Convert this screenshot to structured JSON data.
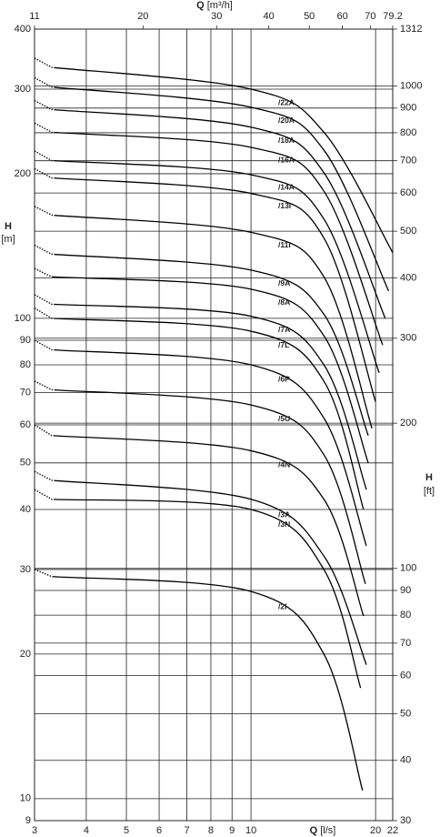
{
  "chart_data": {
    "type": "line",
    "x_label": "Q",
    "x_unit": "[l/s]",
    "x2_label": "Q",
    "x2_unit": "[m³/h]",
    "y_label": "H",
    "y_unit": "[m]",
    "y2_label": "H",
    "y2_unit": "[ft]",
    "xlim": [
      3,
      22
    ],
    "xticks": [
      3,
      4,
      5,
      6,
      7,
      8,
      9,
      10,
      20,
      22
    ],
    "x2lim": [
      11,
      79.2
    ],
    "x2ticks": [
      11,
      20,
      30,
      40,
      50,
      60,
      70,
      79.2
    ],
    "ylim": [
      9,
      400
    ],
    "yticks": [
      9,
      10,
      20,
      30,
      40,
      50,
      60,
      70,
      80,
      90,
      100,
      200,
      300,
      400
    ],
    "y2lim": [
      30,
      1312
    ],
    "y2ticks": [
      30,
      40,
      50,
      60,
      70,
      80,
      90,
      100,
      200,
      300,
      400,
      500,
      600,
      700,
      800,
      900,
      1000,
      1312
    ],
    "log_x": true,
    "log_y": true,
    "grid": true,
    "color": "#000000",
    "dotted_start": true,
    "series": [
      {
        "name": "/22A",
        "x": [
          3,
          3.3,
          10,
          15,
          22
        ],
        "values": [
          348,
          333,
          300,
          244,
          137
        ]
      },
      {
        "name": "/20A",
        "x": [
          3,
          3.3,
          10,
          15,
          21.5
        ],
        "values": [
          317,
          303,
          275,
          224,
          114
        ]
      },
      {
        "name": "/18A",
        "x": [
          3,
          3.3,
          10,
          15,
          21.1
        ],
        "values": [
          284,
          272,
          250,
          201,
          100
        ]
      },
      {
        "name": "/16A",
        "x": [
          3,
          3.3,
          10,
          15,
          20.8
        ],
        "values": [
          255,
          244,
          227,
          184,
          88
        ]
      },
      {
        "name": "/14A",
        "x": [
          3,
          3.3,
          10,
          15,
          20.4
        ],
        "values": [
          223,
          213,
          199,
          161,
          77
        ]
      },
      {
        "name": "/13I",
        "x": [
          3,
          3.3,
          10,
          15,
          20.0
        ],
        "values": [
          205,
          196,
          182,
          147,
          67
        ]
      },
      {
        "name": "/11I",
        "x": [
          3,
          3.3,
          10,
          15,
          19.6
        ],
        "values": [
          171,
          164,
          151,
          122,
          59
        ]
      },
      {
        "name": "/9A",
        "x": [
          3,
          3.3,
          10,
          15,
          19.2
        ],
        "values": [
          142,
          136,
          126,
          102,
          57
        ]
      },
      {
        "name": "/8A",
        "x": [
          3,
          3.3,
          10,
          15,
          19.2
        ],
        "values": [
          127,
          122,
          115,
          92,
          50
        ]
      },
      {
        "name": "/7A",
        "x": [
          3,
          3.3,
          10,
          15,
          19.0
        ],
        "values": [
          112,
          107,
          101,
          80,
          44
        ]
      },
      {
        "name": "/7L",
        "x": [
          3,
          3.3,
          10,
          15,
          18.7
        ],
        "values": [
          105,
          100,
          94,
          74,
          40
        ]
      },
      {
        "name": "/6P",
        "x": [
          3,
          3.3,
          10,
          15,
          19.0
        ],
        "values": [
          90,
          86,
          80,
          62,
          33.6
        ]
      },
      {
        "name": "/5U",
        "x": [
          3,
          3.3,
          10,
          15,
          18.9
        ],
        "values": [
          74,
          71,
          66,
          52,
          28
        ]
      },
      {
        "name": "/4N",
        "x": [
          3,
          3.3,
          10,
          15,
          18.7
        ],
        "values": [
          60,
          57,
          53,
          42,
          24
        ]
      },
      {
        "name": "/3A",
        "x": [
          3,
          3.3,
          10,
          15,
          19.0
        ],
        "values": [
          48,
          46,
          42,
          32,
          19
        ]
      },
      {
        "name": "/3N",
        "x": [
          3,
          3.3,
          10,
          15,
          18.4
        ],
        "values": [
          44,
          42,
          40,
          30,
          17
        ]
      },
      {
        "name": "/2I",
        "x": [
          3,
          3.3,
          10,
          15,
          18.6
        ],
        "values": [
          30,
          29,
          27,
          20,
          10.4
        ]
      }
    ]
  }
}
